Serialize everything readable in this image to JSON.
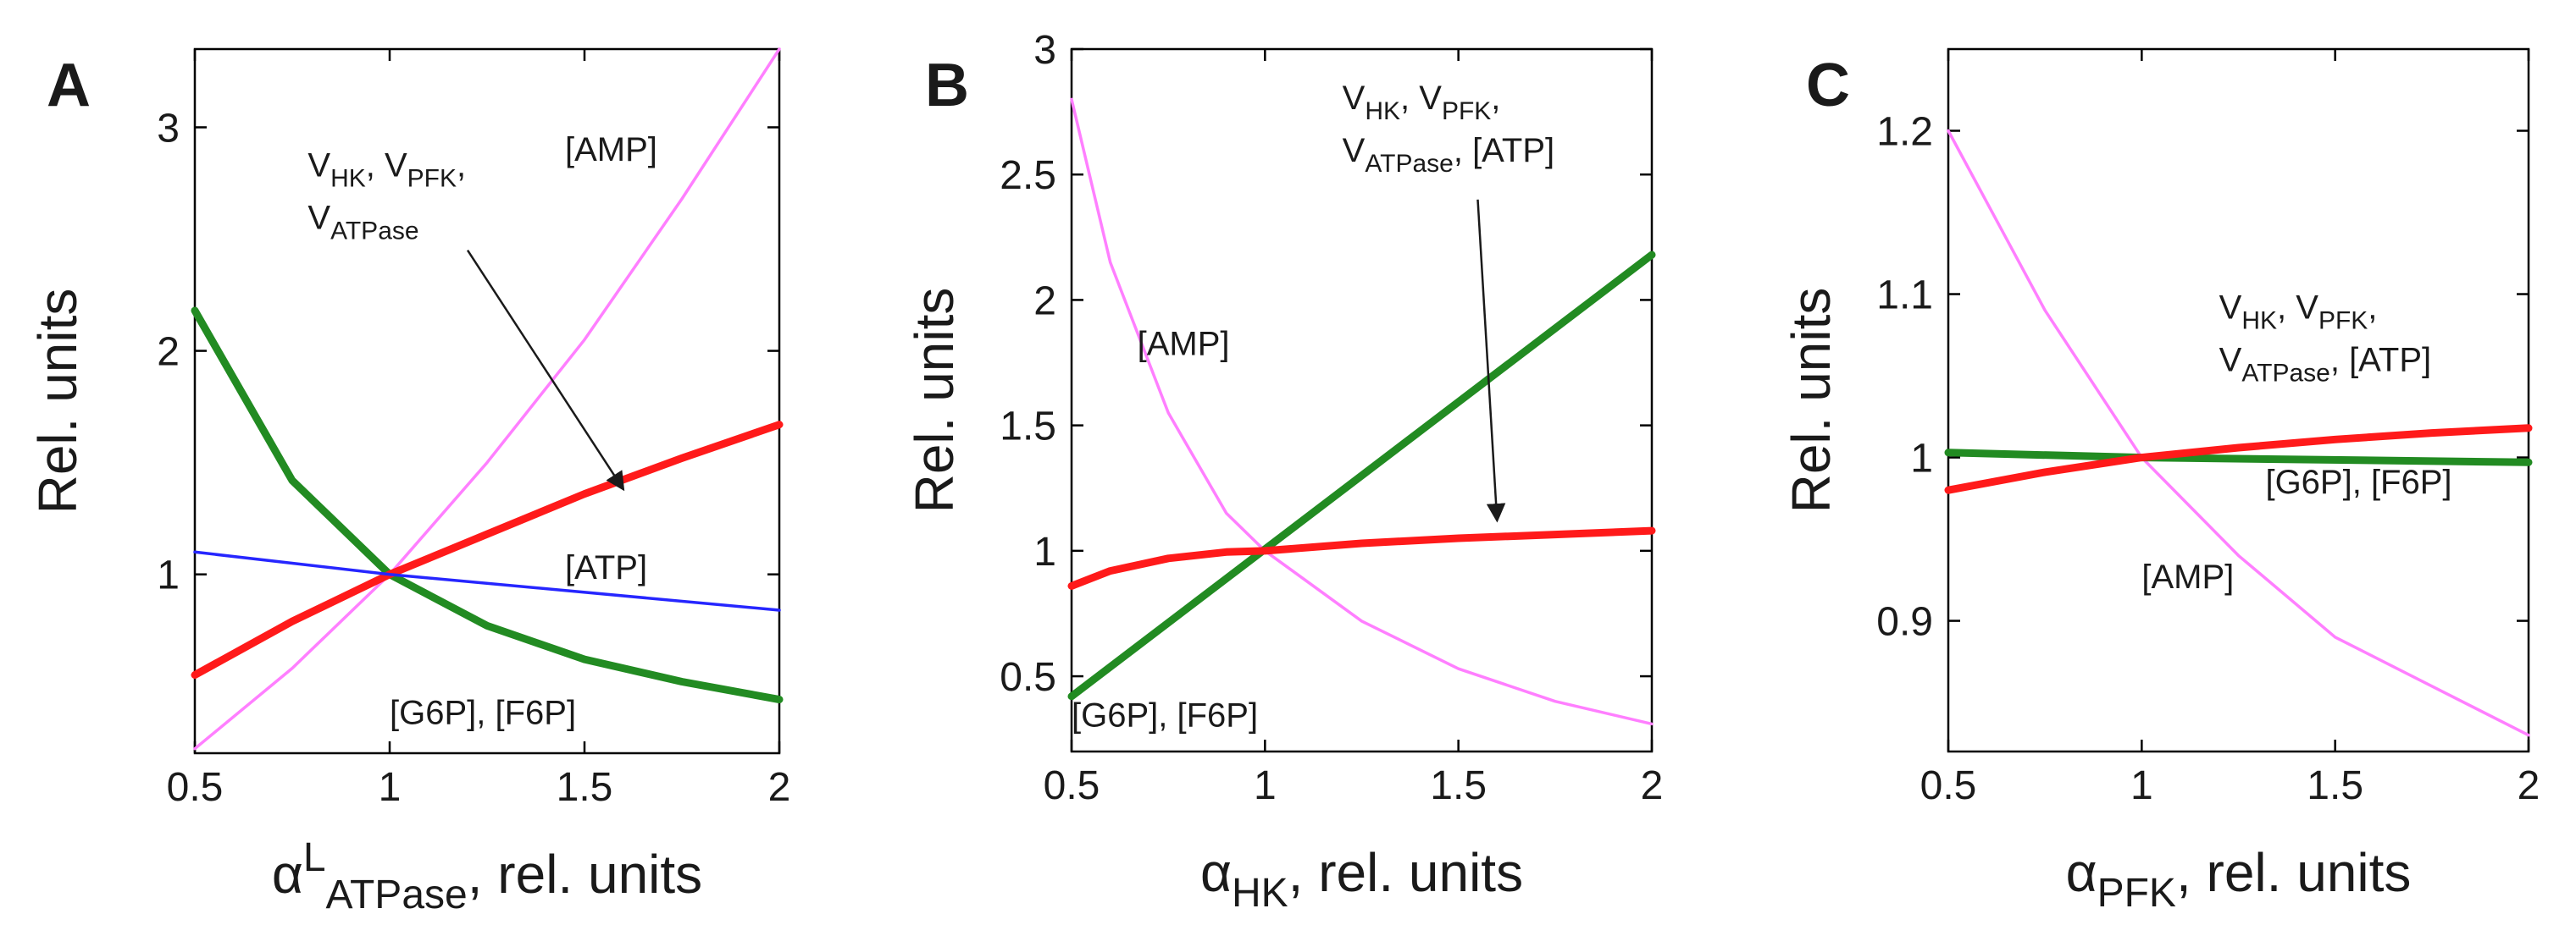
{
  "figure": {
    "description_free": true,
    "colors": {
      "magenta": "#ff7fff",
      "green": "#228b22",
      "red": "#ff1a1a",
      "blue": "#2626ff",
      "axis": "#000000",
      "arrow": "#1a1a1a"
    }
  },
  "chart_data": [
    {
      "type": "line",
      "panel": "A",
      "xlabel": {
        "main": "α",
        "sup": "L",
        "sub": "ATPase",
        "rest": ", rel. units"
      },
      "ylabel": "Rel. units",
      "xlim": [
        0.5,
        2
      ],
      "ylim": [
        0.2,
        3.35
      ],
      "xticks": [
        0.5,
        1,
        1.5,
        2
      ],
      "xtick_labels": [
        "0.5",
        "1",
        "1.5",
        "2"
      ],
      "yticks": [
        1,
        2,
        3
      ],
      "ytick_labels": [
        "1",
        "2",
        "3"
      ],
      "series": [
        {
          "name": "[AMP]",
          "color": "#ff7fff",
          "width": "thin",
          "x": [
            0.5,
            0.75,
            1.0,
            1.25,
            1.5,
            1.75,
            2.0
          ],
          "y": [
            0.22,
            0.58,
            1.0,
            1.5,
            2.05,
            2.68,
            3.35
          ]
        },
        {
          "name": "[G6P], [F6P]",
          "color": "#228b22",
          "width": "thick",
          "x": [
            0.5,
            0.75,
            1.0,
            1.25,
            1.5,
            1.75,
            2.0
          ],
          "y": [
            2.18,
            1.42,
            1.0,
            0.77,
            0.62,
            0.52,
            0.44
          ]
        },
        {
          "name": "V_HK, V_PFK, V_ATPase",
          "color": "#ff1a1a",
          "width": "thick",
          "x": [
            0.5,
            0.75,
            1.0,
            1.25,
            1.5,
            1.75,
            2.0
          ],
          "y": [
            0.55,
            0.79,
            1.0,
            1.18,
            1.36,
            1.52,
            1.67
          ]
        },
        {
          "name": "[ATP]",
          "color": "#2626ff",
          "width": "thin",
          "x": [
            0.5,
            1.0,
            2.0
          ],
          "y": [
            1.1,
            1.0,
            0.84
          ]
        }
      ],
      "annotations": [
        {
          "id": "amp",
          "text": "[AMP]",
          "x": 1.45,
          "y": 2.85
        },
        {
          "id": "atp",
          "text": "[ATP]",
          "x": 1.45,
          "y": 0.98
        },
        {
          "id": "g6p",
          "text": "[G6P], [F6P]",
          "x": 1.0,
          "y": 0.33
        },
        {
          "id": "v",
          "arrow_to": [
            1.6,
            1.38
          ],
          "arrow_from": [
            1.2,
            2.45
          ],
          "lines": [
            [
              {
                "t": "V"
              },
              {
                "t": "HK",
                "sub": true
              },
              {
                "t": ", V"
              },
              {
                "t": "PFK",
                "sub": true
              },
              {
                "t": ","
              }
            ],
            [
              {
                "t": "V"
              },
              {
                "t": "ATPase",
                "sub": true
              }
            ]
          ],
          "x": 0.79,
          "y": 2.78
        }
      ]
    },
    {
      "type": "line",
      "panel": "B",
      "xlabel": {
        "main": "α",
        "sup": "",
        "sub": "HK",
        "rest": ", rel. units"
      },
      "ylabel": "Rel. units",
      "xlim": [
        0.5,
        2
      ],
      "ylim": [
        0.2,
        3.0
      ],
      "xticks": [
        0.5,
        1,
        1.5,
        2
      ],
      "xtick_labels": [
        "0.5",
        "1",
        "1.5",
        "2"
      ],
      "yticks": [
        0.5,
        1,
        1.5,
        2,
        2.5,
        3
      ],
      "ytick_labels": [
        "0.5",
        "1",
        "1.5",
        "2",
        "2.5",
        "3"
      ],
      "series": [
        {
          "name": "[AMP]",
          "color": "#ff7fff",
          "width": "thin",
          "x": [
            0.5,
            0.6,
            0.75,
            0.9,
            1.0,
            1.25,
            1.5,
            1.75,
            2.0
          ],
          "y": [
            2.8,
            2.15,
            1.55,
            1.15,
            1.0,
            0.72,
            0.53,
            0.4,
            0.31
          ]
        },
        {
          "name": "[G6P], [F6P]",
          "color": "#228b22",
          "width": "thick",
          "x": [
            0.5,
            2.0
          ],
          "y": [
            0.42,
            2.18
          ]
        },
        {
          "name": "V_HK, V_PFK, V_ATPase, [ATP]",
          "color": "#ff1a1a",
          "width": "thick",
          "x": [
            0.5,
            0.6,
            0.75,
            0.9,
            1.0,
            1.25,
            1.5,
            1.75,
            2.0
          ],
          "y": [
            0.86,
            0.92,
            0.97,
            0.995,
            1.0,
            1.03,
            1.05,
            1.065,
            1.08
          ]
        }
      ],
      "annotations": [
        {
          "id": "amp",
          "text": "[AMP]",
          "x": 0.67,
          "y": 1.78
        },
        {
          "id": "g6p",
          "text": "[G6P], [F6P]",
          "x": 0.5,
          "y": 0.3
        },
        {
          "id": "v",
          "arrow_to": [
            1.6,
            1.12
          ],
          "arrow_from": [
            1.55,
            2.4
          ],
          "lines": [
            [
              {
                "t": "V"
              },
              {
                "t": "HK",
                "sub": true
              },
              {
                "t": ", V"
              },
              {
                "t": "PFK",
                "sub": true
              },
              {
                "t": ","
              }
            ],
            [
              {
                "t": "V"
              },
              {
                "t": "ATPase",
                "sub": true
              },
              {
                "t": ", [ATP]"
              }
            ]
          ],
          "x": 1.2,
          "y": 2.76
        }
      ]
    },
    {
      "type": "line",
      "panel": "C",
      "xlabel": {
        "main": "α",
        "sup": "",
        "sub": "PFK",
        "rest": ", rel. units"
      },
      "ylabel": "Rel. units",
      "xlim": [
        0.5,
        2
      ],
      "ylim": [
        0.82,
        1.25
      ],
      "xticks": [
        0.5,
        1,
        1.5,
        2
      ],
      "xtick_labels": [
        "0.5",
        "1",
        "1.5",
        "2"
      ],
      "yticks": [
        0.9,
        1,
        1.1,
        1.2
      ],
      "ytick_labels": [
        "0.9",
        "1",
        "1.1",
        "1.2"
      ],
      "series": [
        {
          "name": "[AMP]",
          "color": "#ff7fff",
          "width": "thin",
          "x": [
            0.5,
            0.75,
            1.0,
            1.25,
            1.5,
            1.75,
            2.0
          ],
          "y": [
            1.2,
            1.09,
            1.0,
            0.94,
            0.89,
            0.86,
            0.83
          ]
        },
        {
          "name": "[G6P], [F6P]",
          "color": "#228b22",
          "width": "thick",
          "x": [
            0.5,
            1.0,
            2.0
          ],
          "y": [
            1.003,
            1.0,
            0.997
          ]
        },
        {
          "name": "V_HK, V_PFK, V_ATPase, [ATP]",
          "color": "#ff1a1a",
          "width": "thick",
          "x": [
            0.5,
            0.75,
            1.0,
            1.25,
            1.5,
            1.75,
            2.0
          ],
          "y": [
            0.98,
            0.991,
            1.0,
            1.006,
            1.011,
            1.015,
            1.018
          ]
        }
      ],
      "annotations": [
        {
          "id": "amp",
          "text": "[AMP]",
          "x": 1.0,
          "y": 0.92
        },
        {
          "id": "g6p",
          "text": "[G6P], [F6P]",
          "x": 1.32,
          "y": 0.978
        },
        {
          "id": "v",
          "lines": [
            [
              {
                "t": "V"
              },
              {
                "t": "HK",
                "sub": true
              },
              {
                "t": ", V"
              },
              {
                "t": "PFK",
                "sub": true
              },
              {
                "t": ","
              }
            ],
            [
              {
                "t": "V"
              },
              {
                "t": "ATPase",
                "sub": true
              },
              {
                "t": ", [ATP]"
              }
            ]
          ],
          "x": 1.2,
          "y": 1.085
        }
      ]
    }
  ]
}
